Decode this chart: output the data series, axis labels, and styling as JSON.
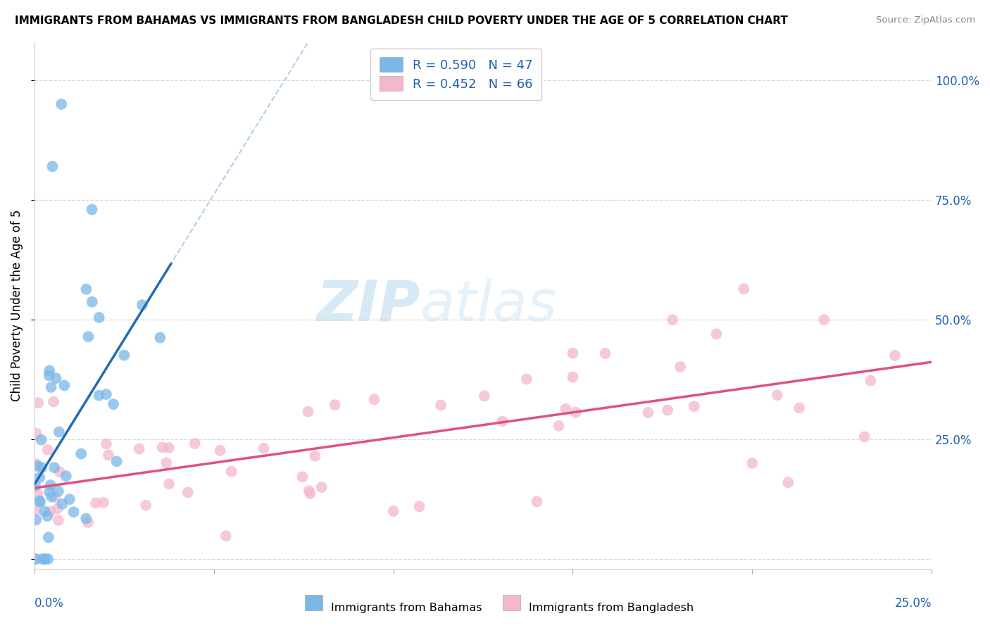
{
  "title": "IMMIGRANTS FROM BAHAMAS VS IMMIGRANTS FROM BANGLADESH CHILD POVERTY UNDER THE AGE OF 5 CORRELATION CHART",
  "source": "Source: ZipAtlas.com",
  "ylabel": "Child Poverty Under the Age of 5",
  "y_ticks": [
    0.0,
    0.25,
    0.5,
    0.75,
    1.0
  ],
  "y_tick_labels": [
    "",
    "25.0%",
    "50.0%",
    "75.0%",
    "100.0%"
  ],
  "x_lim": [
    0.0,
    0.25
  ],
  "y_lim": [
    -0.02,
    1.08
  ],
  "legend_label1": "R = 0.590   N = 47",
  "legend_label2": "R = 0.452   N = 66",
  "legend_footer1": "Immigrants from Bahamas",
  "legend_footer2": "Immigrants from Bangladesh",
  "color_bahamas": "#7ab8e8",
  "color_bangladesh": "#f5b8cb",
  "color_line_bahamas": "#1f6db5",
  "color_line_bangladesh": "#e05080",
  "watermark_left": "ZIP",
  "watermark_right": "atlas",
  "grid_color": "#d8d8d8",
  "spine_color": "#cccccc",
  "tick_color": "#aaaaaa",
  "label_color_blue": "#2060b0"
}
